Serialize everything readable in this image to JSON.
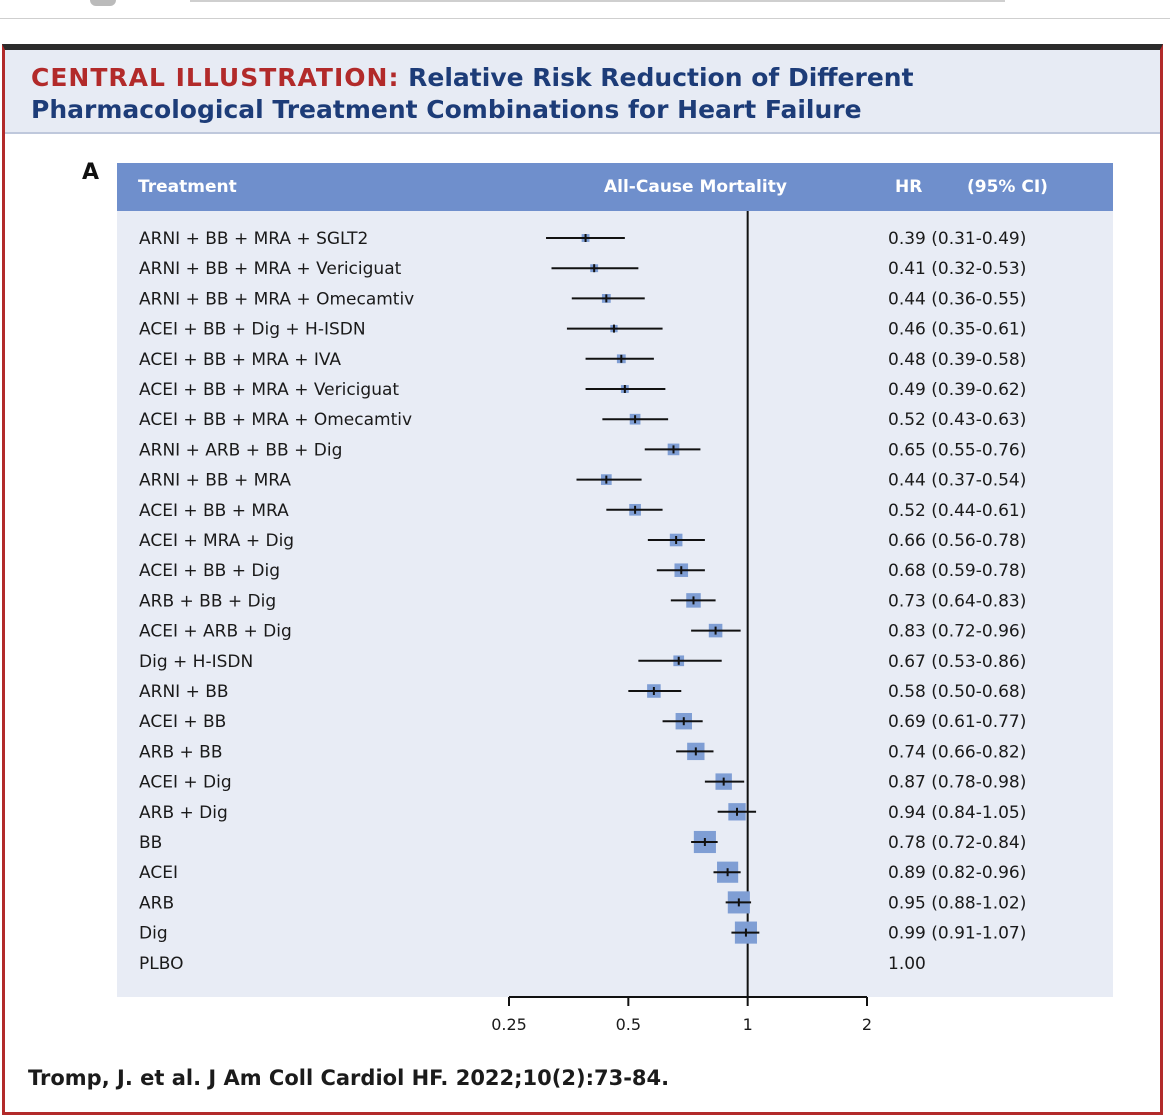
{
  "header": {
    "title_lead": "CENTRAL ILLUSTRATION:",
    "title_rest": " Relative Risk Reduction of Different Pharmacological Treatment Combinations for Heart Failure",
    "panel_letter": "A"
  },
  "colors": {
    "header_bg": "#6f8fcc",
    "plot_bg": "#e8ecf5",
    "marker": "#7f9ed4",
    "title_red": "#b22a2a",
    "title_blue": "#1d3c78"
  },
  "citation": "Tromp, J. et al. J Am Coll Cardiol HF. 2022;10(2):73-84.",
  "chart_data": {
    "type": "forest",
    "columns": {
      "treatment": "Treatment",
      "outcome": "All-Cause Mortality",
      "hr": "HR",
      "ci": "(95% CI)"
    },
    "x_scale": "log",
    "xlim": [
      0.25,
      2
    ],
    "ticks": [
      0.25,
      0.5,
      1,
      2
    ],
    "tick_labels": [
      "0.25",
      "0.5",
      "1",
      "2"
    ],
    "reference_line": 1,
    "rows": [
      {
        "treatment": "ARNI + BB + MRA + SGLT2",
        "hr": 0.39,
        "lo": 0.31,
        "hi": 0.49,
        "hr_text": "0.39 (0.31-0.49)",
        "weight": 0.15
      },
      {
        "treatment": "ARNI + BB + MRA + Vericiguat",
        "hr": 0.41,
        "lo": 0.32,
        "hi": 0.53,
        "hr_text": "0.41 (0.32-0.53)",
        "weight": 0.15
      },
      {
        "treatment": "ARNI + BB + MRA + Omecamtiv",
        "hr": 0.44,
        "lo": 0.36,
        "hi": 0.55,
        "hr_text": "0.44 (0.36-0.55)",
        "weight": 0.2
      },
      {
        "treatment": "ACEI + BB + Dig + H-ISDN",
        "hr": 0.46,
        "lo": 0.35,
        "hi": 0.61,
        "hr_text": "0.46 (0.35-0.61)",
        "weight": 0.12
      },
      {
        "treatment": "ACEI + BB + MRA + IVA",
        "hr": 0.48,
        "lo": 0.39,
        "hi": 0.58,
        "hr_text": "0.48 (0.39-0.58)",
        "weight": 0.2
      },
      {
        "treatment": "ACEI + BB + MRA + Vericiguat",
        "hr": 0.49,
        "lo": 0.39,
        "hi": 0.62,
        "hr_text": "0.49 (0.39-0.62)",
        "weight": 0.15
      },
      {
        "treatment": "ACEI + BB + MRA + Omecamtiv",
        "hr": 0.52,
        "lo": 0.43,
        "hi": 0.63,
        "hr_text": "0.52 (0.43-0.63)",
        "weight": 0.3
      },
      {
        "treatment": "ARNI + ARB + BB + Dig",
        "hr": 0.65,
        "lo": 0.55,
        "hi": 0.76,
        "hr_text": "0.65 (0.55-0.76)",
        "weight": 0.35
      },
      {
        "treatment": "ARNI + BB + MRA",
        "hr": 0.44,
        "lo": 0.37,
        "hi": 0.54,
        "hr_text": "0.44 (0.37-0.54)",
        "weight": 0.3
      },
      {
        "treatment": "ACEI + BB + MRA",
        "hr": 0.52,
        "lo": 0.44,
        "hi": 0.61,
        "hr_text": "0.52 (0.44-0.61)",
        "weight": 0.35
      },
      {
        "treatment": "ACEI + MRA + Dig",
        "hr": 0.66,
        "lo": 0.56,
        "hi": 0.78,
        "hr_text": "0.66 (0.56-0.78)",
        "weight": 0.4
      },
      {
        "treatment": "ACEI + BB + Dig",
        "hr": 0.68,
        "lo": 0.59,
        "hi": 0.78,
        "hr_text": "0.68 (0.59-0.78)",
        "weight": 0.45
      },
      {
        "treatment": "ARB + BB + Dig",
        "hr": 0.73,
        "lo": 0.64,
        "hi": 0.83,
        "hr_text": "0.73 (0.64-0.83)",
        "weight": 0.5
      },
      {
        "treatment": "ACEI + ARB + Dig",
        "hr": 0.83,
        "lo": 0.72,
        "hi": 0.96,
        "hr_text": "0.83 (0.72-0.96)",
        "weight": 0.45
      },
      {
        "treatment": "Dig + H-ISDN",
        "hr": 0.67,
        "lo": 0.53,
        "hi": 0.86,
        "hr_text": "0.67 (0.53-0.86)",
        "weight": 0.3
      },
      {
        "treatment": "ARNI + BB",
        "hr": 0.58,
        "lo": 0.5,
        "hi": 0.68,
        "hr_text": "0.58 (0.50-0.68)",
        "weight": 0.45
      },
      {
        "treatment": "ACEI + BB",
        "hr": 0.69,
        "lo": 0.61,
        "hi": 0.77,
        "hr_text": "0.69 (0.61-0.77)",
        "weight": 0.6
      },
      {
        "treatment": "ARB + BB",
        "hr": 0.74,
        "lo": 0.66,
        "hi": 0.82,
        "hr_text": "0.74 (0.66-0.82)",
        "weight": 0.65
      },
      {
        "treatment": "ACEI + Dig",
        "hr": 0.87,
        "lo": 0.78,
        "hi": 0.98,
        "hr_text": "0.87 (0.78-0.98)",
        "weight": 0.6
      },
      {
        "treatment": "ARB + Dig",
        "hr": 0.94,
        "lo": 0.84,
        "hi": 1.05,
        "hr_text": "0.94 (0.84-1.05)",
        "weight": 0.65
      },
      {
        "treatment": "BB",
        "hr": 0.78,
        "lo": 0.72,
        "hi": 0.84,
        "hr_text": "0.78 (0.72-0.84)",
        "weight": 0.9
      },
      {
        "treatment": "ACEI",
        "hr": 0.89,
        "lo": 0.82,
        "hi": 0.96,
        "hr_text": "0.89 (0.82-0.96)",
        "weight": 0.85
      },
      {
        "treatment": "ARB",
        "hr": 0.95,
        "lo": 0.88,
        "hi": 1.02,
        "hr_text": "0.95 (0.88-1.02)",
        "weight": 0.9
      },
      {
        "treatment": "Dig",
        "hr": 0.99,
        "lo": 0.91,
        "hi": 1.07,
        "hr_text": "0.99 (0.91-1.07)",
        "weight": 0.9
      },
      {
        "treatment": "PLBO",
        "hr": 1.0,
        "lo": null,
        "hi": null,
        "hr_text": "1.00",
        "weight": 0
      }
    ]
  }
}
